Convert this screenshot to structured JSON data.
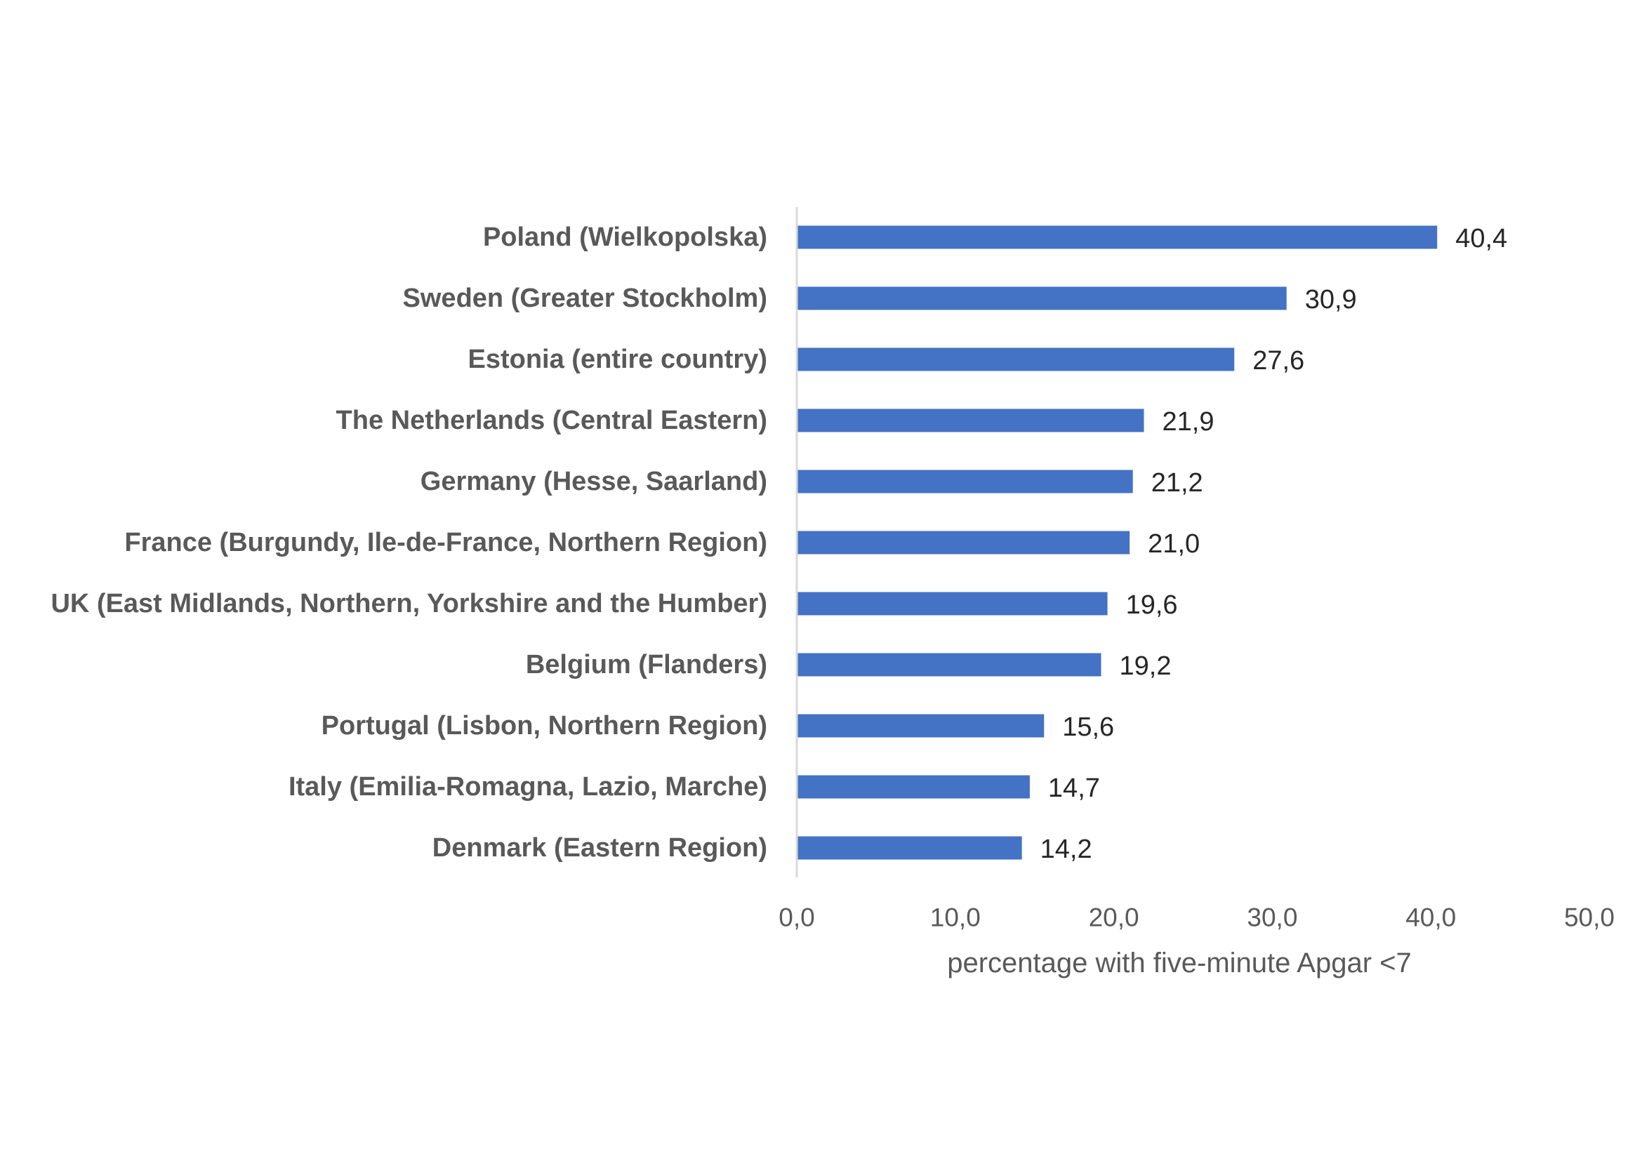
{
  "chart_data": {
    "type": "bar",
    "orientation": "horizontal",
    "categories": [
      "Poland (Wielkopolska)",
      "Sweden (Greater Stockholm)",
      "Estonia (entire country)",
      "The Netherlands (Central Eastern)",
      "Germany (Hesse, Saarland)",
      "France (Burgundy, Ile-de-France, Northern Region)",
      "UK (East Midlands, Northern, Yorkshire and the Humber)",
      "Belgium (Flanders)",
      "Portugal (Lisbon, Northern Region)",
      "Italy (Emilia-Romagna, Lazio, Marche)",
      "Denmark (Eastern Region)"
    ],
    "values": [
      40.4,
      30.9,
      27.6,
      21.9,
      21.2,
      21.0,
      19.6,
      19.2,
      15.6,
      14.7,
      14.2
    ],
    "value_labels": [
      "40,4",
      "30,9",
      "27,6",
      "21,9",
      "21,2",
      "21,0",
      "19,6",
      "19,2",
      "15,6",
      "14,7",
      "14,2"
    ],
    "xticks": [
      0,
      10,
      20,
      30,
      40,
      50
    ],
    "xtick_labels": [
      "0,0",
      "10,0",
      "20,0",
      "30,0",
      "40,0",
      "50,0"
    ],
    "xlim": [
      0,
      50
    ],
    "xlabel": "percentage with five-minute Apgar <7",
    "title": "",
    "grid": false,
    "colors": {
      "bar": "#4472C4",
      "axis": "#D9D9D9"
    }
  }
}
